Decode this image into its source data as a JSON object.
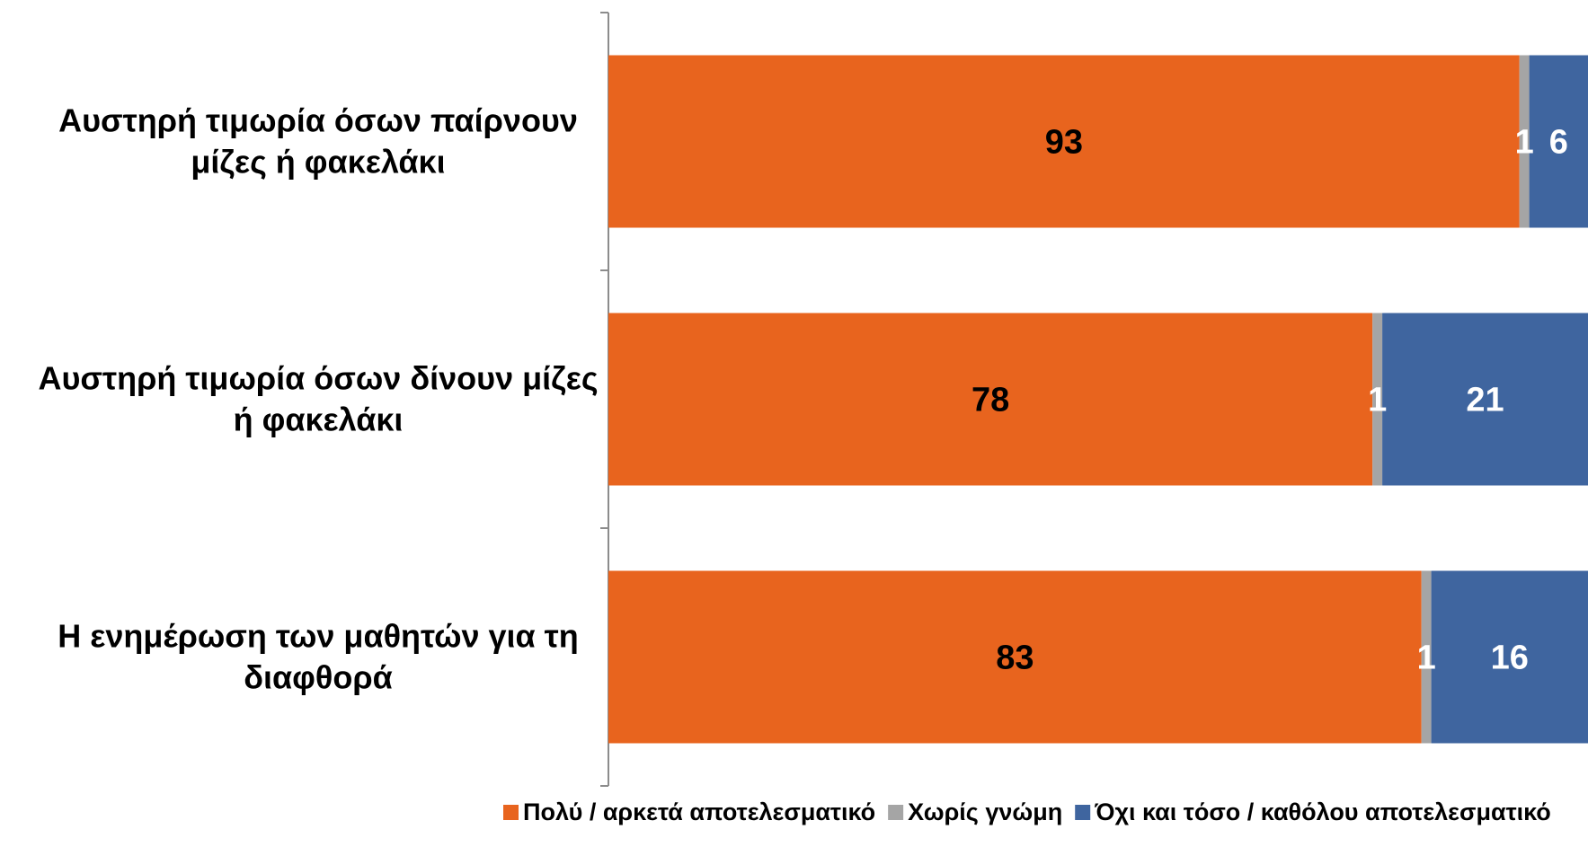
{
  "chart_data": {
    "type": "bar",
    "orientation": "horizontal",
    "stacked": true,
    "categories": [
      "Αυστηρή τιμωρία όσων παίρνουν μίζες ή φακελάκι",
      "Αυστηρή τιμωρία όσων δίνουν μίζες ή φακελάκι",
      "Η ενημέρωση των μαθητών για τη διαφθορά"
    ],
    "category_lines": [
      [
        "Αυστηρή τιμωρία όσων παίρνουν",
        "μίζες ή φακελάκι"
      ],
      [
        "Αυστηρή τιμωρία όσων δίνουν μίζες",
        "ή φακελάκι"
      ],
      [
        "Η ενημέρωση των μαθητών για τη",
        "διαφθορά"
      ]
    ],
    "series": [
      {
        "name": "Πολύ / αρκετά αποτελεσματικό",
        "color": "#E8641E",
        "label_color": "#000000",
        "values": [
          93,
          78,
          83
        ]
      },
      {
        "name": "Χωρίς γνώμη",
        "color": "#A5A5A5",
        "label_color": "#FFFFFF",
        "values": [
          1,
          1,
          1
        ]
      },
      {
        "name": "Όχι και τόσο / καθόλου αποτελεσματικό",
        "color": "#3F659F",
        "label_color": "#FFFFFF",
        "values": [
          6,
          21,
          16
        ]
      }
    ],
    "xlim": [
      0,
      100
    ],
    "data_labels": true,
    "grid": false,
    "x_axis_visible": false,
    "legend_position": "bottom-right"
  }
}
